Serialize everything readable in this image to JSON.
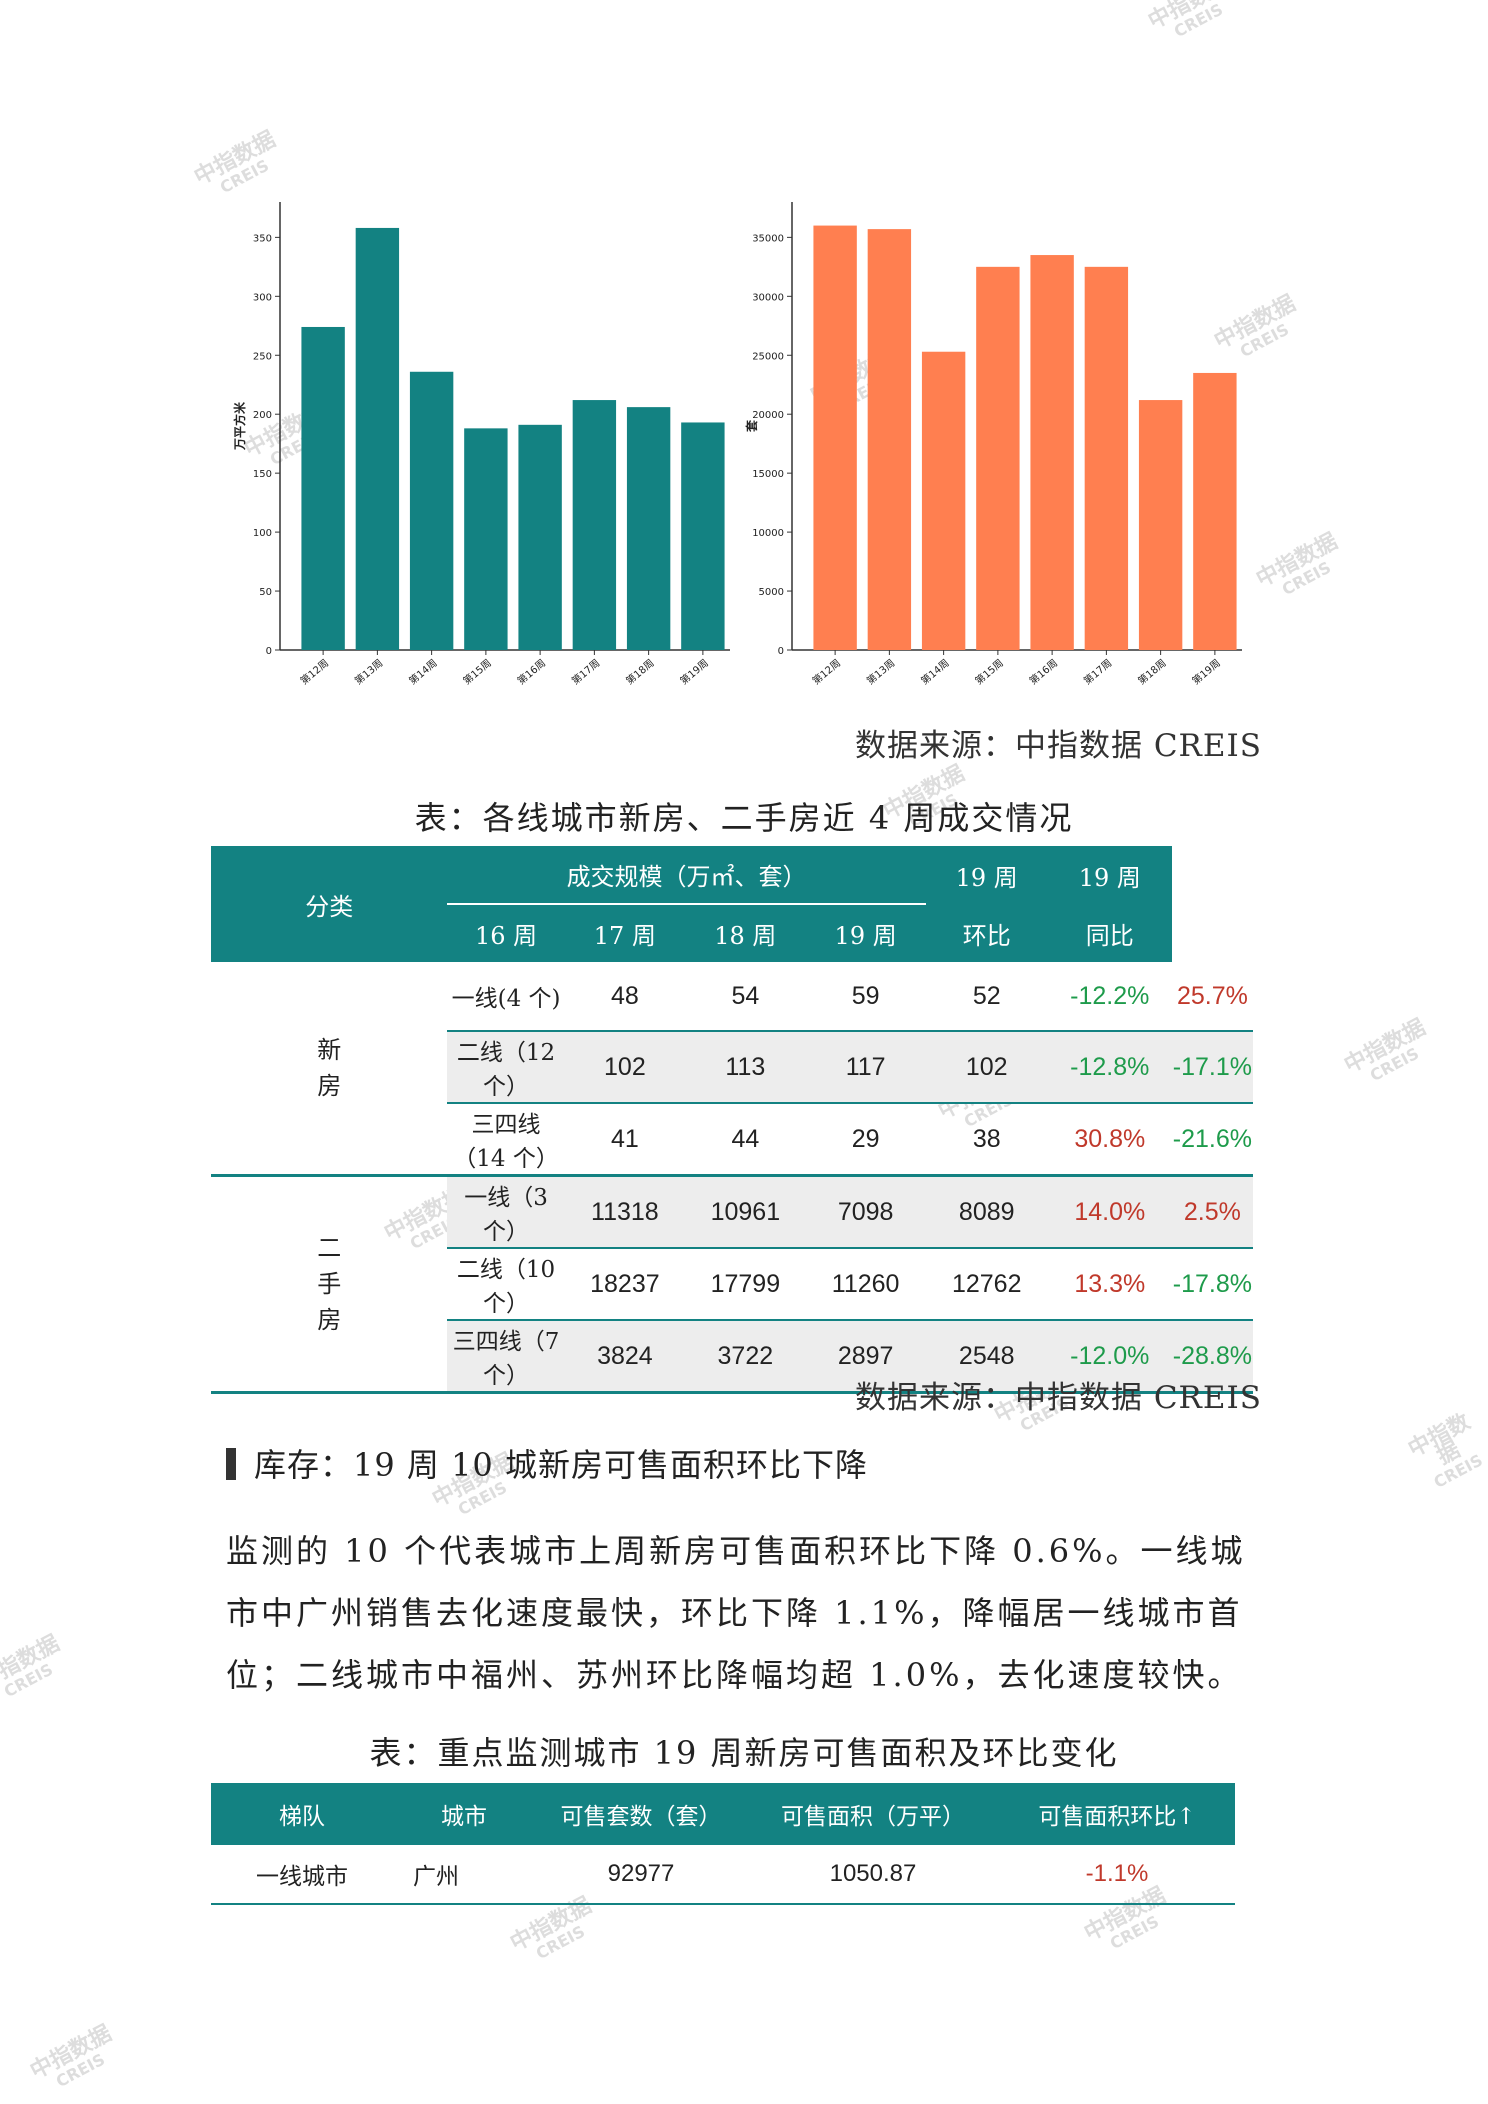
{
  "watermark": {
    "line1": "中指数据",
    "line2": "CREIS"
  },
  "chart_data": [
    {
      "type": "bar",
      "title": "",
      "ylabel": "万平方米",
      "xlabel": "",
      "categories": [
        "第12周",
        "第13周",
        "第14周",
        "第15周",
        "第16周",
        "第17周",
        "第18周",
        "第19周"
      ],
      "values": [
        274,
        358,
        236,
        188,
        191,
        212,
        206,
        193
      ],
      "ylim": [
        0,
        380
      ],
      "yticks": [
        0,
        50,
        100,
        150,
        200,
        250,
        300,
        350
      ],
      "color": "#138282"
    },
    {
      "type": "bar",
      "title": "",
      "ylabel": "套",
      "xlabel": "",
      "categories": [
        "第12周",
        "第13周",
        "第14周",
        "第15周",
        "第16周",
        "第17周",
        "第18周",
        "第19周"
      ],
      "values": [
        36000,
        35700,
        25300,
        32500,
        33500,
        32500,
        21200,
        23500
      ],
      "ylim": [
        0,
        38000
      ],
      "yticks": [
        0,
        5000,
        10000,
        15000,
        20000,
        25000,
        30000,
        35000
      ],
      "color": "#FF7F50"
    }
  ],
  "source1": "数据来源：中指数据 CREIS",
  "table1": {
    "caption": "表：各线城市新房、二手房近 4 周成交情况",
    "header": {
      "category": "分类",
      "scale": "成交规模（万㎡、套）",
      "weeks": [
        "16 周",
        "17 周",
        "18 周",
        "19 周"
      ],
      "mom_line1": "19 周",
      "mom_line2": "环比",
      "yoy_line1": "19 周",
      "yoy_line2": "同比"
    },
    "groups": [
      {
        "name": "新房",
        "rows": [
          {
            "label": "一线(4 个)",
            "w16": "48",
            "w17": "54",
            "w18": "59",
            "w19": "52",
            "mom": "-12.2%",
            "yoy": "25.7%"
          },
          {
            "label": "二线（12 个）",
            "w16": "102",
            "w17": "113",
            "w18": "117",
            "w19": "102",
            "mom": "-12.8%",
            "yoy": "-17.1%"
          },
          {
            "label": "三四线（14 个）",
            "w16": "41",
            "w17": "44",
            "w18": "29",
            "w19": "38",
            "mom": "30.8%",
            "yoy": "-21.6%"
          }
        ]
      },
      {
        "name": "二手房",
        "rows": [
          {
            "label": "一线（3 个）",
            "w16": "11318",
            "w17": "10961",
            "w18": "7098",
            "w19": "8089",
            "mom": "14.0%",
            "yoy": "2.5%"
          },
          {
            "label": "二线（10 个）",
            "w16": "18237",
            "w17": "17799",
            "w18": "11260",
            "w19": "12762",
            "mom": "13.3%",
            "yoy": "-17.8%"
          },
          {
            "label": "三四线（7 个）",
            "w16": "3824",
            "w17": "3722",
            "w18": "2897",
            "w19": "2548",
            "mom": "-12.0%",
            "yoy": "-28.8%"
          }
        ]
      }
    ]
  },
  "source2": "数据来源：中指数据 CREIS",
  "section_title": "库存：19 周 10 城新房可售面积环比下降",
  "paragraph": "监测的 10 个代表城市上周新房可售面积环比下降 0.6%。一线城市中广州销售去化速度最快，环比下降 1.1%，降幅居一线城市首位；二线城市中福州、苏州环比降幅均超 1.0%，去化速度较快。",
  "table2": {
    "caption": "表：重点监测城市 19 周新房可售面积及环比变化",
    "headers": [
      "梯队",
      "城市",
      "可售套数（套）",
      "可售面积（万平）",
      "可售面积环比↑"
    ],
    "rows": [
      {
        "tier": "一线城市",
        "city": "广州",
        "units": "92977",
        "area": "1050.87",
        "mom": "-1.1%"
      }
    ]
  },
  "colors": {
    "teal": "#138282",
    "orange": "#FF7F50",
    "green": "#1e9b4b",
    "red": "#c0392b"
  }
}
